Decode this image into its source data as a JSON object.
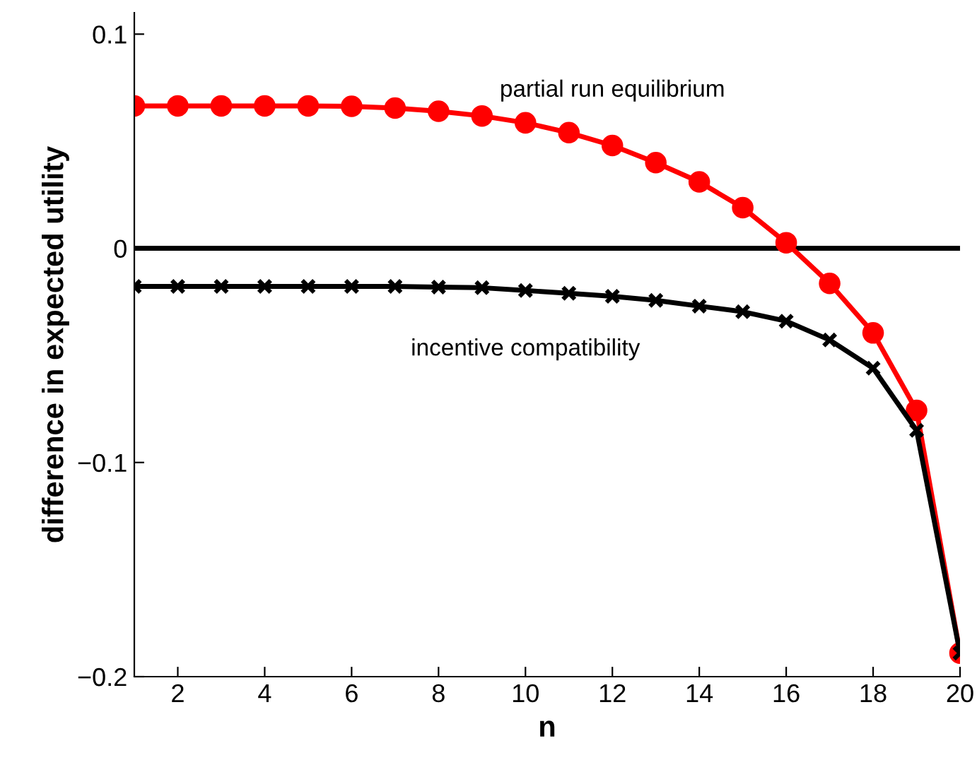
{
  "chart_data": {
    "type": "line",
    "xlabel": "n",
    "ylabel": "difference in expected utility",
    "x": [
      1,
      2,
      3,
      4,
      5,
      6,
      7,
      8,
      9,
      10,
      11,
      12,
      13,
      14,
      15,
      16,
      17,
      18,
      19,
      20
    ],
    "series": [
      {
        "name": "partial run equilibrium",
        "color": "#ff0000",
        "marker": "circle",
        "values": [
          0.0665,
          0.0665,
          0.0665,
          0.0665,
          0.0665,
          0.0663,
          0.0655,
          0.064,
          0.0618,
          0.0586,
          0.054,
          0.048,
          0.04,
          0.031,
          0.019,
          0.0026,
          -0.0164,
          -0.0395,
          -0.0757,
          -0.189
        ]
      },
      {
        "name": "incentive compatibility",
        "color": "#000000",
        "marker": "cross",
        "values": [
          -0.0178,
          -0.0178,
          -0.0178,
          -0.0178,
          -0.0178,
          -0.0178,
          -0.0178,
          -0.0181,
          -0.0184,
          -0.0197,
          -0.021,
          -0.0224,
          -0.0243,
          -0.027,
          -0.0296,
          -0.034,
          -0.0428,
          -0.056,
          -0.085,
          -0.189
        ]
      }
    ],
    "ref_lines": [
      {
        "axis": "y",
        "value": 0,
        "color": "#000000"
      }
    ],
    "xlim": [
      1,
      20
    ],
    "xticks": [
      2,
      4,
      6,
      8,
      10,
      12,
      14,
      16,
      18,
      20
    ],
    "ylim": [
      -0.2,
      0.11
    ],
    "yticks": [
      {
        "value": -0.2,
        "label": "−0.2"
      },
      {
        "value": -0.1,
        "label": "−0.1"
      },
      {
        "value": 0,
        "label": "0"
      },
      {
        "value": 0.1,
        "label": "0.1"
      }
    ],
    "grid": false,
    "legend": false,
    "line_style": "solid"
  }
}
